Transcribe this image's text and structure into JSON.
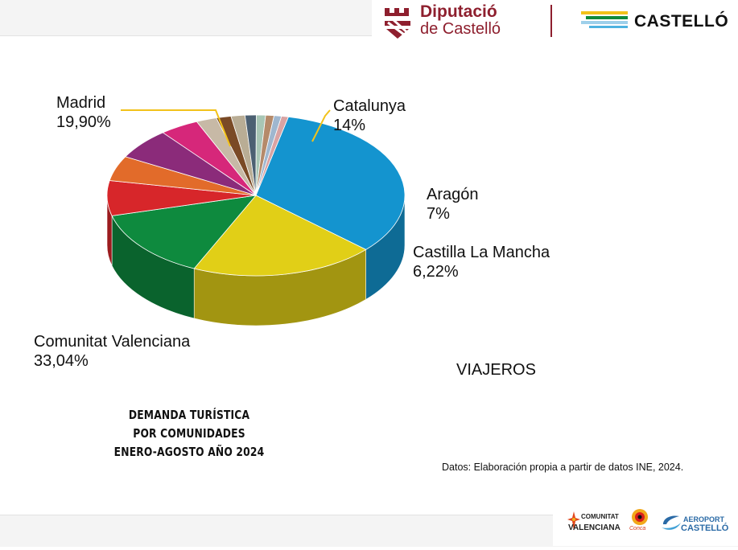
{
  "header": {
    "diputacio_line1": "Diputació",
    "diputacio_line2": "de Castelló",
    "castello": "CASTELLÓ"
  },
  "chart_data": {
    "type": "pie",
    "slices": [
      {
        "name": "Comunitat Valenciana",
        "value": 33.04,
        "label": "33,04%",
        "color": "#1494cf",
        "labeled": true
      },
      {
        "name": "Madrid",
        "value": 19.9,
        "label": "19,90%",
        "color": "#e1cf17",
        "labeled": true
      },
      {
        "name": "Catalunya",
        "value": 14,
        "label": "14%",
        "color": "#0e8a3e",
        "labeled": true
      },
      {
        "name": "Aragón",
        "value": 7,
        "label": "7%",
        "color": "#d7262a",
        "labeled": true
      },
      {
        "name": "",
        "value": 5.0,
        "color": "#e26b2a",
        "labeled": false
      },
      {
        "name": "Castilla La Mancha",
        "value": 6.22,
        "label": "6,22%",
        "color": "#8b2b7a",
        "labeled": true
      },
      {
        "name": "",
        "value": 4.2,
        "color": "#d6277a",
        "labeled": false
      },
      {
        "name": "",
        "value": 2.2,
        "color": "#c7b9a6",
        "labeled": false
      },
      {
        "name": "",
        "value": 1.6,
        "color": "#7a4a26",
        "labeled": false
      },
      {
        "name": "",
        "value": 1.5,
        "color": "#b9ad95",
        "labeled": false
      },
      {
        "name": "",
        "value": 1.2,
        "color": "#4c6072",
        "labeled": false
      },
      {
        "name": "",
        "value": 1.0,
        "color": "#a8c6b5",
        "labeled": false
      },
      {
        "name": "",
        "value": 0.9,
        "color": "#b58a6a",
        "labeled": false
      },
      {
        "name": "",
        "value": 0.8,
        "color": "#9fb7cf",
        "labeled": false
      },
      {
        "name": "",
        "value": 0.74,
        "color": "#d9a3a3",
        "labeled": false
      }
    ]
  },
  "viajeros": "VIAJEROS",
  "demanda_lines": [
    "DEMANDA TURÍSTICA",
    "POR COMUNIDADES",
    "ENERO-AGOSTO AÑO 2024"
  ],
  "source": "Datos: Elaboración propia a partir de datos INE, 2024.",
  "footer": {
    "comunitat_1": "COMUNITAT",
    "comunitat_2": "VALENCIANA",
    "conca": "Conca",
    "aeroport_1": "AEROPORT",
    "aeroport_2": "CASTELLÓ"
  }
}
